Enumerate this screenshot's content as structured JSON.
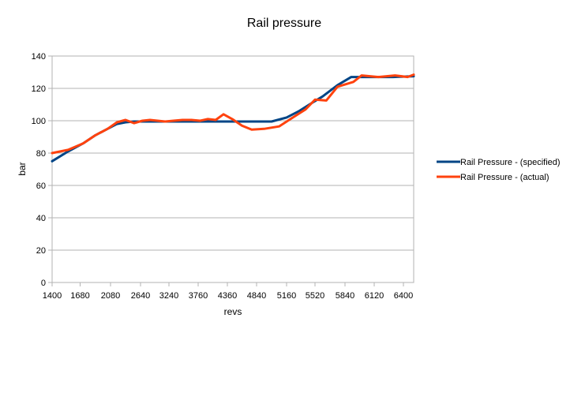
{
  "chart_data": {
    "type": "line",
    "title": "Rail pressure",
    "xlabel": "revs",
    "ylabel": "bar",
    "ylim": [
      0,
      140
    ],
    "yticks": [
      0,
      20,
      40,
      60,
      80,
      100,
      120,
      140
    ],
    "xlim": [
      1400,
      6520
    ],
    "xticks": [
      1400,
      1680,
      2080,
      2640,
      3240,
      3760,
      4360,
      4840,
      5160,
      5520,
      5840,
      6120,
      6400
    ],
    "grid": true,
    "legend_position": "right",
    "series": [
      {
        "name": "Rail Pressure - (specified)",
        "color": "#004586",
        "points": [
          [
            1400,
            75
          ],
          [
            1560,
            81
          ],
          [
            1720,
            86
          ],
          [
            1880,
            91
          ],
          [
            2040,
            95
          ],
          [
            2200,
            98
          ],
          [
            2360,
            99
          ],
          [
            2520,
            99.5
          ],
          [
            2800,
            99.5
          ],
          [
            3200,
            99.5
          ],
          [
            3600,
            99.5
          ],
          [
            4000,
            99.5
          ],
          [
            4400,
            99.5
          ],
          [
            4800,
            99.5
          ],
          [
            5000,
            99.5
          ],
          [
            5160,
            102
          ],
          [
            5320,
            106
          ],
          [
            5480,
            111
          ],
          [
            5600,
            115
          ],
          [
            5760,
            122
          ],
          [
            5900,
            127
          ],
          [
            6100,
            127
          ],
          [
            6300,
            127
          ],
          [
            6520,
            127.5
          ]
        ]
      },
      {
        "name": "Rail Pressure - (actual)",
        "color": "#ff420e",
        "points": [
          [
            1400,
            80
          ],
          [
            1560,
            82
          ],
          [
            1720,
            86
          ],
          [
            1880,
            91
          ],
          [
            2040,
            95
          ],
          [
            2200,
            99
          ],
          [
            2360,
            100.5
          ],
          [
            2520,
            98.5
          ],
          [
            2680,
            100
          ],
          [
            2840,
            100.5
          ],
          [
            3000,
            100
          ],
          [
            3160,
            99.5
          ],
          [
            3320,
            100
          ],
          [
            3480,
            100.5
          ],
          [
            3640,
            100.5
          ],
          [
            3800,
            100
          ],
          [
            3960,
            101
          ],
          [
            4120,
            100.5
          ],
          [
            4280,
            104
          ],
          [
            4440,
            101
          ],
          [
            4600,
            97
          ],
          [
            4760,
            94.5
          ],
          [
            4920,
            95
          ],
          [
            5080,
            96.5
          ],
          [
            5240,
            102
          ],
          [
            5400,
            107
          ],
          [
            5520,
            113
          ],
          [
            5640,
            112.5
          ],
          [
            5760,
            121
          ],
          [
            5920,
            124
          ],
          [
            6000,
            128
          ],
          [
            6160,
            127
          ],
          [
            6320,
            128
          ],
          [
            6440,
            127
          ],
          [
            6520,
            128.5
          ]
        ]
      }
    ]
  }
}
